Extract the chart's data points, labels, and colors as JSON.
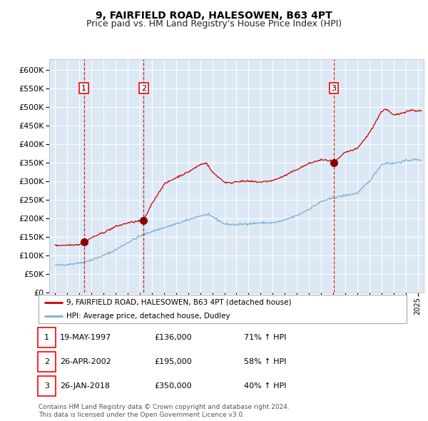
{
  "title": "9, FAIRFIELD ROAD, HALESOWEN, B63 4PT",
  "subtitle": "Price paid vs. HM Land Registry's House Price Index (HPI)",
  "xlim": [
    1994.5,
    2025.5
  ],
  "ylim": [
    0,
    630000
  ],
  "yticks": [
    0,
    50000,
    100000,
    150000,
    200000,
    250000,
    300000,
    350000,
    400000,
    450000,
    500000,
    550000,
    600000
  ],
  "background_color": "#dce9f5",
  "grid_color": "#ffffff",
  "sale_dates": [
    1997.38,
    2002.32,
    2018.07
  ],
  "sale_prices": [
    136000,
    195000,
    350000
  ],
  "sale_labels": [
    "1",
    "2",
    "3"
  ],
  "vline_color": "#cc0000",
  "marker_color": "#8b0000",
  "hpi_line_color": "#7bafd4",
  "price_line_color": "#cc0000",
  "legend_entries": [
    "9, FAIRFIELD ROAD, HALESOWEN, B63 4PT (detached house)",
    "HPI: Average price, detached house, Dudley"
  ],
  "table_data": [
    [
      "1",
      "19-MAY-1997",
      "£136,000",
      "71% ↑ HPI"
    ],
    [
      "2",
      "26-APR-2002",
      "£195,000",
      "58% ↑ HPI"
    ],
    [
      "3",
      "26-JAN-2018",
      "£350,000",
      "40% ↑ HPI"
    ]
  ],
  "footnote": "Contains HM Land Registry data © Crown copyright and database right 2024.\nThis data is licensed under the Open Government Licence v3.0.",
  "title_fontsize": 10,
  "subtitle_fontsize": 9
}
